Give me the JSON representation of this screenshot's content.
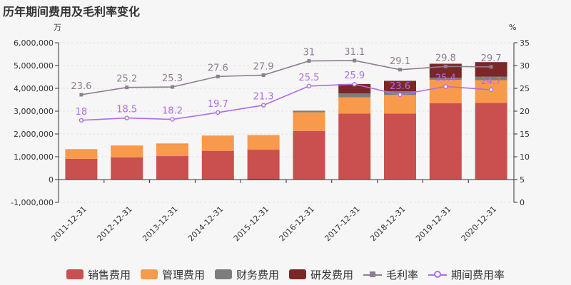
{
  "title": "历年期间费用及毛利率变化",
  "chart_data": {
    "type": "bar",
    "stacked": true,
    "categories": [
      "2011-12-31",
      "2012-12-31",
      "2013-12-31",
      "2014-12-31",
      "2015-12-31",
      "2016-12-31",
      "2017-12-31",
      "2018-12-31",
      "2019-12-31",
      "2020-12-31"
    ],
    "left_unit": "万",
    "right_unit": "%",
    "left_axis": {
      "min": -1000000,
      "max": 6000000,
      "ticks": [
        -1000000,
        0,
        1000000,
        2000000,
        3000000,
        4000000,
        5000000,
        6000000
      ],
      "tick_labels": [
        "-1,000,000",
        "0",
        "1,000,000",
        "2,000,000",
        "3,000,000",
        "4,000,000",
        "5,000,000",
        "6,000,000"
      ]
    },
    "right_axis": {
      "min": 0,
      "max": 35,
      "ticks": [
        0,
        5,
        10,
        15,
        20,
        25,
        30,
        35
      ],
      "tick_labels": [
        "0",
        "5",
        "10",
        "15",
        "20",
        "25",
        "30",
        "35"
      ]
    },
    "bar_series": [
      {
        "name": "销售费用",
        "color": "#c9504e",
        "values": [
          910000,
          970000,
          1030000,
          1260000,
          1310000,
          2130000,
          2890000,
          2890000,
          3350000,
          3360000
        ]
      },
      {
        "name": "管理费用",
        "color": "#f79a4b",
        "values": [
          410000,
          510000,
          540000,
          670000,
          640000,
          820000,
          720000,
          820000,
          1020000,
          1000000
        ]
      },
      {
        "name": "财务费用",
        "color": "#7d7d7d",
        "values": [
          5000,
          5000,
          5000,
          -20000,
          -30000,
          70000,
          170000,
          160000,
          100000,
          150000
        ]
      },
      {
        "name": "研发费用",
        "color": "#7b2727",
        "values": [
          0,
          0,
          0,
          0,
          0,
          0,
          410000,
          460000,
          610000,
          640000
        ]
      }
    ],
    "line_series": [
      {
        "name": "毛利率",
        "color": "#8e7d92",
        "marker": "square",
        "values": [
          23.6,
          25.2,
          25.3,
          27.6,
          27.9,
          31,
          31.1,
          29.1,
          29.8,
          29.7
        ],
        "labels": [
          "23.6",
          "25.2",
          "25.3",
          "27.6",
          "27.9",
          "31",
          "31.1",
          "29.1",
          "29.8",
          "29.7"
        ]
      },
      {
        "name": "期间费用率",
        "color": "#b06ce8",
        "marker": "circle",
        "values": [
          18,
          18.5,
          18.2,
          19.7,
          21.3,
          25.5,
          25.9,
          23.6,
          25.4,
          24.7
        ],
        "labels": [
          "18",
          "18.5",
          "18.2",
          "19.7",
          "21.3",
          "25.5",
          "25.9",
          "23.6",
          "25.4",
          "24.7"
        ]
      }
    ],
    "legend_position": "bottom"
  }
}
